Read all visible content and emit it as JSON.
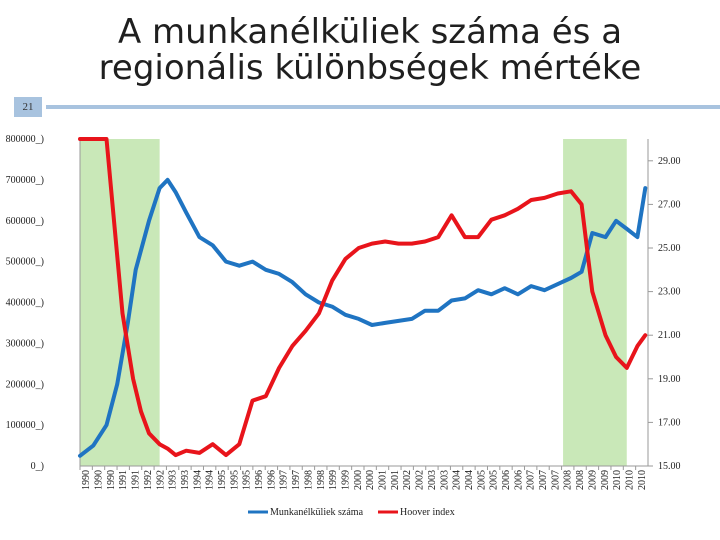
{
  "title_lines": [
    "A munkanélküliek száma és a",
    "regionális különbségek mértéke"
  ],
  "slide_number": "21",
  "chart_data": {
    "type": "line",
    "title": "A munkanélküliek száma és a regionális különbségek mértéke",
    "y_left": {
      "ticks": [
        0,
        100000,
        200000,
        300000,
        400000,
        500000,
        600000,
        700000,
        800000
      ],
      "tick_labels": [
        "0_)",
        "100000_)",
        "200000_)",
        "300000_)",
        "400000_)",
        "500000_)",
        "600000_)",
        "700000_)",
        "800000_)"
      ],
      "range": [
        0,
        800000
      ]
    },
    "y_right": {
      "ticks": [
        15,
        17,
        19,
        21,
        23,
        25,
        27,
        29
      ],
      "tick_labels": [
        "15.00",
        "17.00",
        "19.00",
        "21.00",
        "23.00",
        "25.00",
        "27.00",
        "29.00"
      ],
      "range": [
        15,
        30
      ]
    },
    "x_range": [
      1990,
      2011.4
    ],
    "x_tick_labels": [
      "1990",
      "1990",
      "1990",
      "1991",
      "1991",
      "1992",
      "1992",
      "1993",
      "1993",
      "1994",
      "1994",
      "1995",
      "1995",
      "1995",
      "1996",
      "1996",
      "1997",
      "1997",
      "1998",
      "1998",
      "1999",
      "1999",
      "2000",
      "2000",
      "2001",
      "2001",
      "2002",
      "2002",
      "2003",
      "2003",
      "2004",
      "2004",
      "2005",
      "2005",
      "2006",
      "2006",
      "2007",
      "2007",
      "2007",
      "2008",
      "2008",
      "2009",
      "2009",
      "2010",
      "2010",
      "2010"
    ],
    "shaded_periods": [
      [
        1990,
        1993.0
      ],
      [
        2008.2,
        2010.6
      ]
    ],
    "series": [
      {
        "name": "Munkanélküliek száma",
        "axis": "left",
        "color": "#1f74c2",
        "x": [
          1990.0,
          1990.5,
          1991.0,
          1991.4,
          1991.8,
          1992.1,
          1992.6,
          1993.0,
          1993.3,
          1993.6,
          1994.0,
          1994.5,
          1995.0,
          1995.5,
          1996.0,
          1996.5,
          1997.0,
          1997.5,
          1998.0,
          1998.5,
          1999.0,
          1999.5,
          2000.0,
          2000.5,
          2001.0,
          2001.5,
          2002.0,
          2002.5,
          2003.0,
          2003.5,
          2004.0,
          2004.5,
          2005.0,
          2005.5,
          2006.0,
          2006.5,
          2007.0,
          2007.5,
          2008.0,
          2008.5,
          2008.9,
          2009.3,
          2009.8,
          2010.2,
          2010.6,
          2011.0,
          2011.3
        ],
        "y": [
          25000,
          50000,
          100000,
          200000,
          350000,
          480000,
          600000,
          680000,
          700000,
          670000,
          620000,
          560000,
          540000,
          500000,
          490000,
          500000,
          480000,
          470000,
          450000,
          420000,
          400000,
          390000,
          370000,
          360000,
          345000,
          350000,
          355000,
          360000,
          380000,
          380000,
          405000,
          410000,
          430000,
          420000,
          435000,
          420000,
          440000,
          430000,
          445000,
          460000,
          475000,
          570000,
          560000,
          600000,
          580000,
          560000,
          680000
        ]
      },
      {
        "name": "Hoover index",
        "axis": "right",
        "color": "#e8141b",
        "x": [
          1990.0,
          1991.0,
          1991.3,
          1991.6,
          1992.0,
          1992.3,
          1992.6,
          1993.0,
          1993.3,
          1993.6,
          1994.0,
          1994.5,
          1995.0,
          1995.5,
          1996.0,
          1996.5,
          1997.0,
          1997.5,
          1998.0,
          1998.5,
          1999.0,
          1999.5,
          2000.0,
          2000.5,
          2001.0,
          2001.5,
          2002.0,
          2002.5,
          2003.0,
          2003.5,
          2004.0,
          2004.5,
          2005.0,
          2005.5,
          2006.0,
          2006.5,
          2007.0,
          2007.5,
          2008.0,
          2008.5,
          2008.9,
          2009.3,
          2009.8,
          2010.2,
          2010.6,
          2011.0,
          2011.3
        ],
        "y": [
          40,
          30,
          26,
          22,
          19,
          17.5,
          16.5,
          16,
          15.8,
          15.5,
          15.7,
          15.6,
          16,
          15.5,
          16,
          18,
          18.2,
          19.5,
          20.5,
          21.2,
          22,
          23.5,
          24.5,
          25,
          25.2,
          25.3,
          25.2,
          25.2,
          25.3,
          25.5,
          26.5,
          25.5,
          25.5,
          26.3,
          26.5,
          26.8,
          27.2,
          27.3,
          27.5,
          27.6,
          27,
          23,
          21,
          20,
          19.5,
          20.5,
          21
        ]
      }
    ],
    "legend": {
      "placement": "bottom-center",
      "entries": [
        "Munkanélküliek száma",
        "Hoover index"
      ]
    }
  },
  "colors": {
    "shade": "#c9e8b8",
    "accent_bar": "#a8c3df",
    "blue_series": "#1f74c2",
    "red_series": "#e8141b"
  }
}
